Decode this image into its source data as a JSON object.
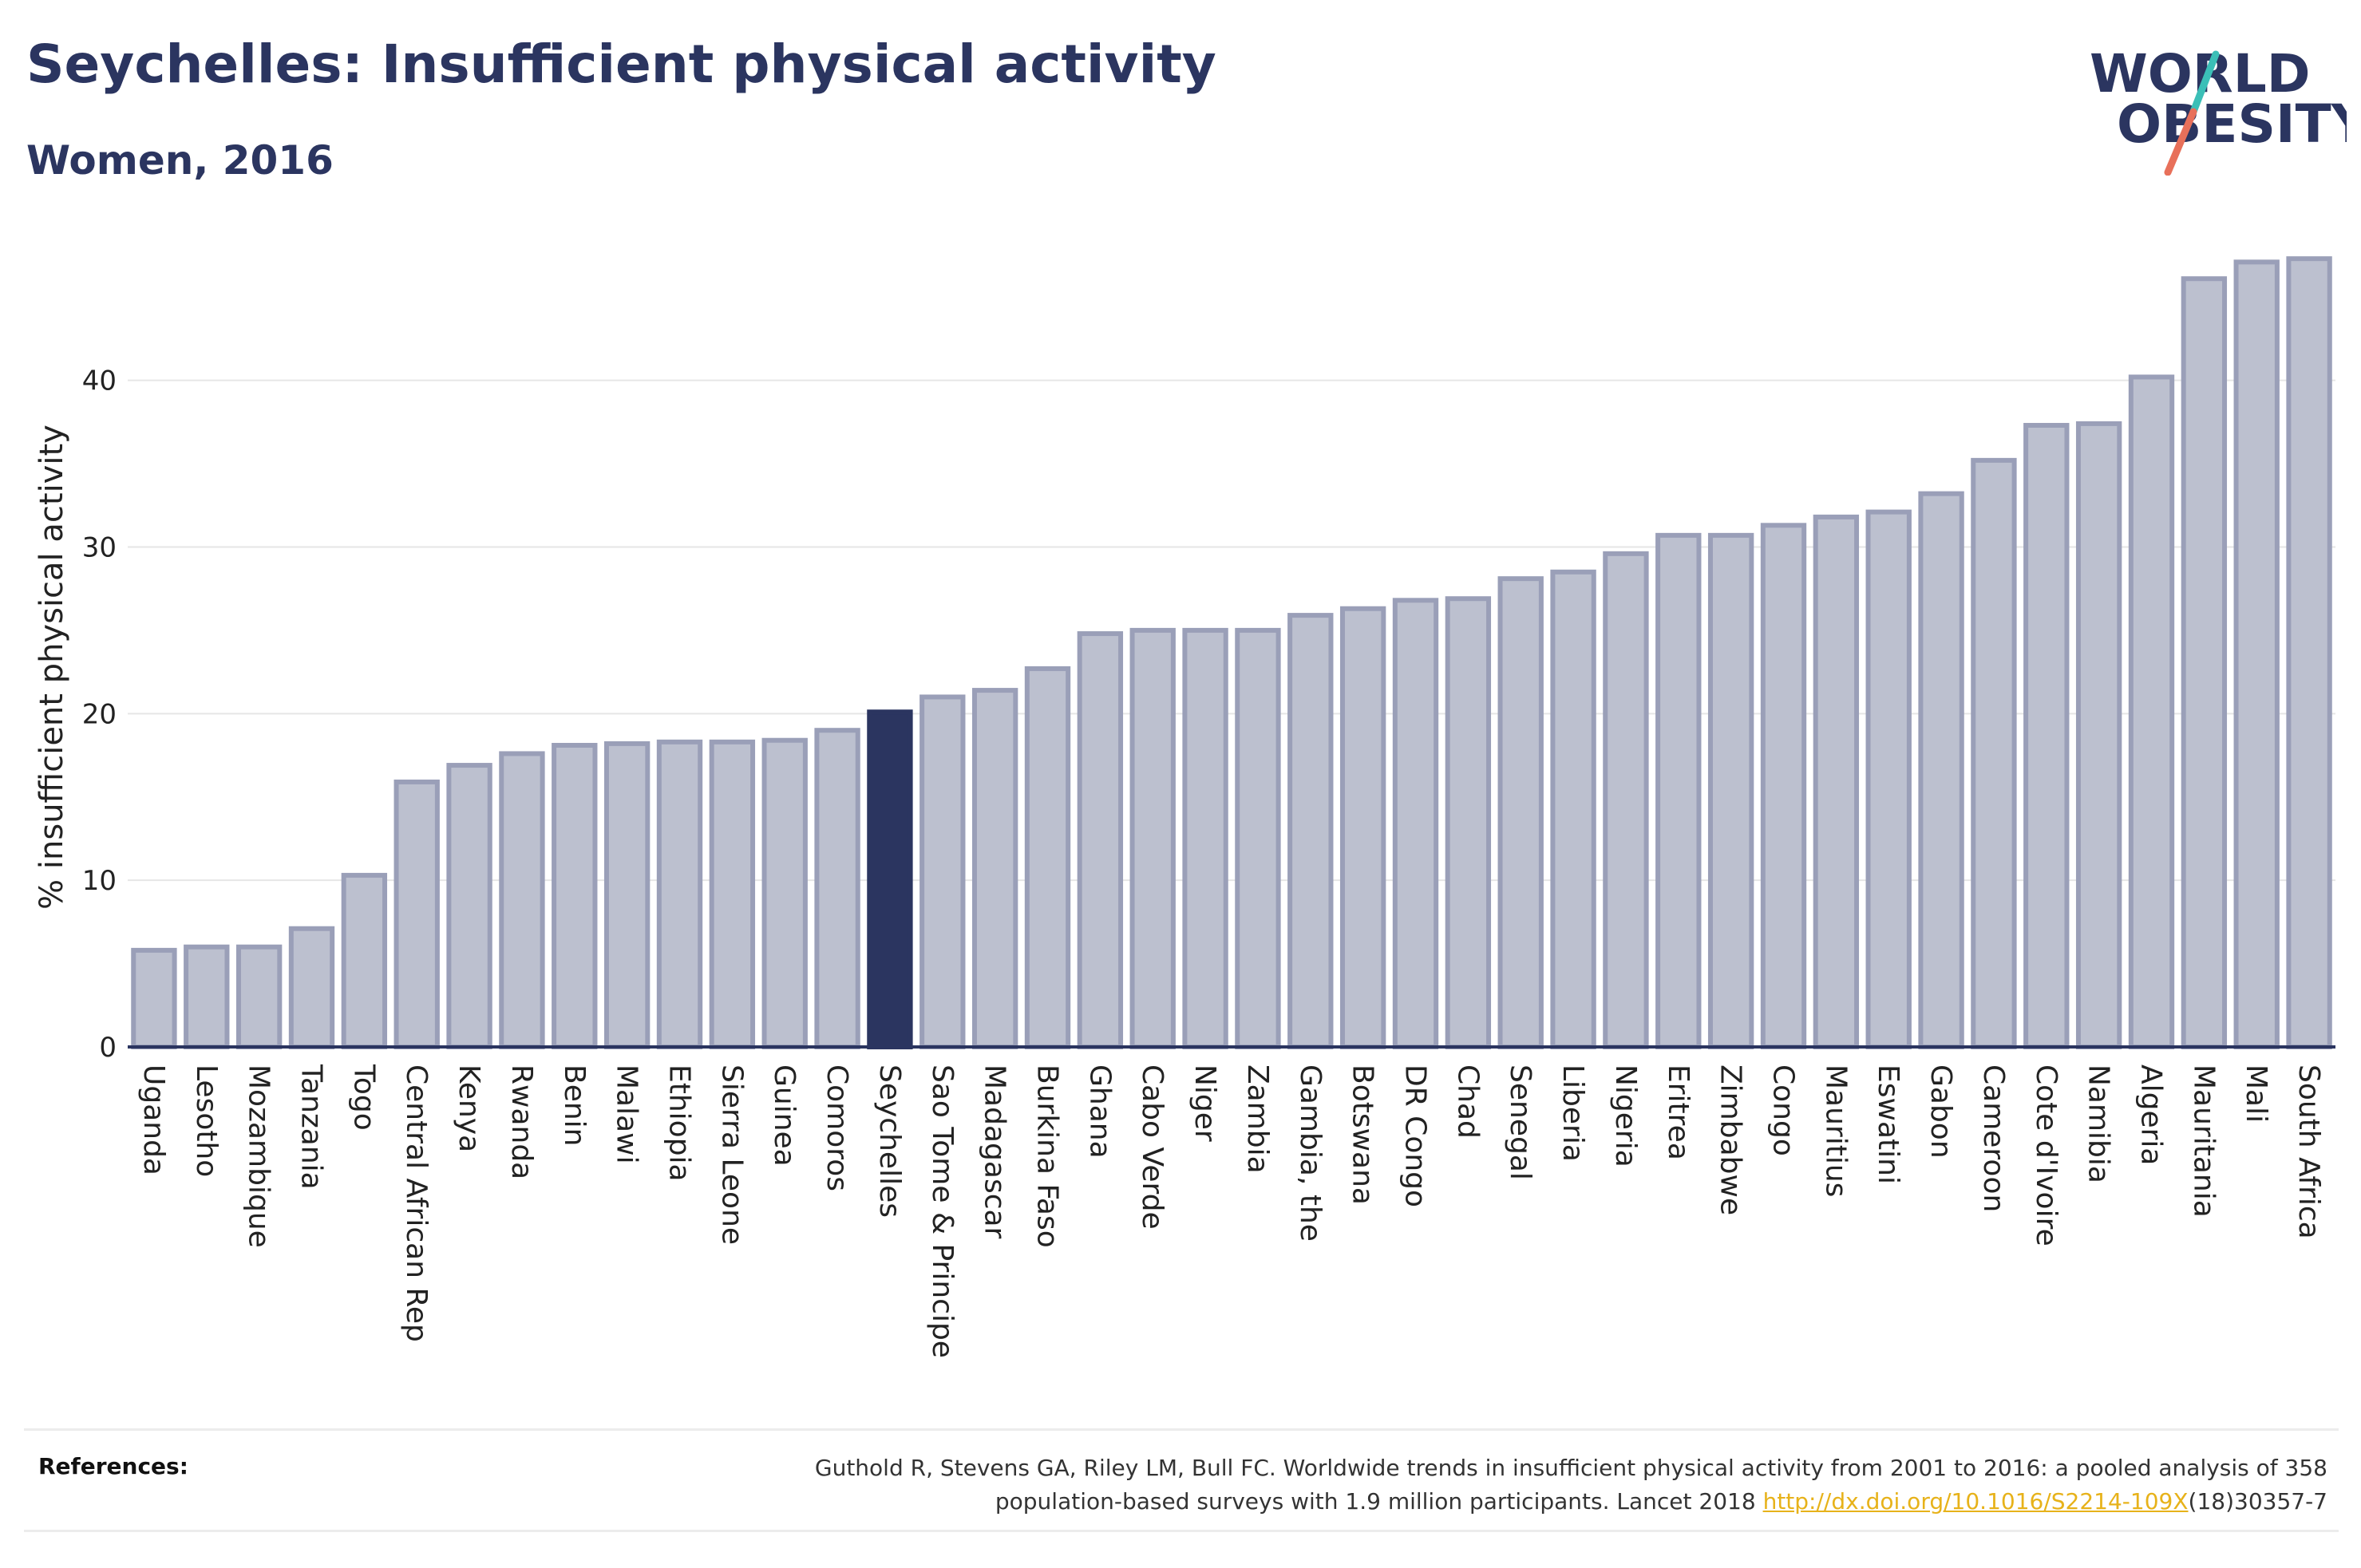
{
  "title": "Seychelles: Insufficient physical activity",
  "subtitle": "Women, 2016",
  "logo": {
    "line1": "WORLD",
    "line2": "OBESITY",
    "colors": {
      "text": "#2b3560",
      "slash_teal": "#3bbfb7",
      "slash_coral": "#e8705a"
    }
  },
  "references": {
    "label": "References:",
    "text_line1": "Guthold R, Stevens GA, Riley LM, Bull FC. Worldwide trends in insufficient physical activity from 2001 to 2016: a pooled analysis of 358",
    "text_line2_prefix": "population-based surveys with 1.9 million participants. Lancet 2018 ",
    "link": "http://dx.doi.org/10.1016/S2214-109X",
    "text_line2_suffix": "(18)30357-7"
  },
  "chart_data": {
    "type": "bar",
    "ylabel": "% insufficient physical activity",
    "xlabel": "",
    "ylim": [
      0,
      47.5
    ],
    "yticks": [
      0,
      10,
      20,
      30,
      40
    ],
    "grid": true,
    "highlight": "Seychelles",
    "colors": {
      "bar": "#bcc0cf",
      "bar_border": "#9a9fb8",
      "highlight": "#2b3560",
      "grid": "#e6e6e6"
    },
    "categories": [
      "Uganda",
      "Lesotho",
      "Mozambique",
      "Tanzania",
      "Togo",
      "Central African Rep",
      "Kenya",
      "Rwanda",
      "Benin",
      "Malawi",
      "Ethiopia",
      "Sierra Leone",
      "Guinea",
      "Comoros",
      "Seychelles",
      "Sao Tome & Principe",
      "Madagascar",
      "Burkina Faso",
      "Ghana",
      "Cabo Verde",
      "Niger",
      "Zambia",
      "Gambia, the",
      "Botswana",
      "DR Congo",
      "Chad",
      "Senegal",
      "Liberia",
      "Nigeria",
      "Eritrea",
      "Zimbabwe",
      "Congo",
      "Mauritius",
      "Eswatini",
      "Gabon",
      "Cameroon",
      "Cote d'Ivoire",
      "Namibia",
      "Algeria",
      "Mauritania",
      "Mali",
      "South Africa"
    ],
    "values": [
      5.8,
      6.0,
      6.0,
      7.1,
      10.3,
      15.9,
      16.9,
      17.6,
      18.1,
      18.2,
      18.3,
      18.3,
      18.4,
      19.0,
      20.1,
      21.0,
      21.4,
      22.7,
      24.8,
      25.0,
      25.0,
      25.0,
      25.9,
      26.3,
      26.8,
      26.9,
      28.1,
      28.5,
      29.6,
      30.7,
      30.7,
      31.3,
      31.8,
      32.1,
      33.2,
      35.2,
      37.3,
      37.4,
      40.2,
      46.1,
      47.1,
      47.3
    ]
  }
}
